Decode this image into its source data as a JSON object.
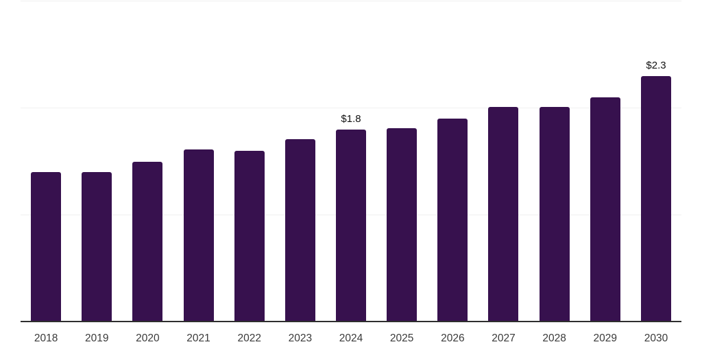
{
  "chart_data": {
    "type": "bar",
    "title": "",
    "xlabel": "",
    "ylabel": "",
    "categories": [
      "2018",
      "2019",
      "2020",
      "2021",
      "2022",
      "2023",
      "2024",
      "2025",
      "2026",
      "2027",
      "2028",
      "2029",
      "2030"
    ],
    "values": [
      1.39,
      1.39,
      1.49,
      1.6,
      1.59,
      1.7,
      1.79,
      1.8,
      1.89,
      2.0,
      2.0,
      2.09,
      2.29
    ],
    "point_labels": [
      "",
      "",
      "",
      "",
      "",
      "",
      "$1.8",
      "",
      "",
      "",
      "",
      "",
      "$2.3"
    ],
    "ylim": [
      0,
      3
    ],
    "gridline_values": [
      1,
      2,
      3
    ],
    "grid_on": true,
    "legend_position": "none",
    "colors": {
      "bar": "#37114E",
      "grid": "#f0f0f0",
      "axis": "#2e2e2e",
      "tick_label": "#3a3a3a",
      "value_label": "#111111",
      "background": "#ffffff"
    }
  }
}
